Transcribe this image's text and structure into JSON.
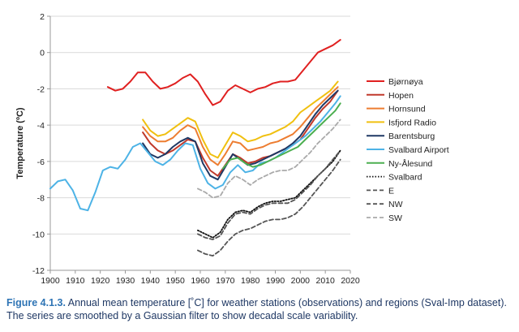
{
  "chart_data": {
    "type": "line",
    "title": "",
    "xlabel": "",
    "ylabel": "Temperature (ºC)",
    "xlim": [
      1900,
      2020
    ],
    "ylim": [
      -12,
      2
    ],
    "xticks": [
      1900,
      1910,
      1920,
      1930,
      1940,
      1950,
      1960,
      1970,
      1980,
      1990,
      2000,
      2010,
      2020
    ],
    "yticks": [
      -12,
      -10,
      -8,
      -6,
      -4,
      -2,
      0,
      2
    ],
    "grid": true,
    "legend_position": "right",
    "series": [
      {
        "name": "Bjørnøya",
        "color": "#e02020",
        "dash": "solid",
        "x": [
          1923,
          1926,
          1929,
          1932,
          1935,
          1938,
          1941,
          1944,
          1947,
          1950,
          1953,
          1956,
          1959,
          1962,
          1965,
          1968,
          1971,
          1974,
          1977,
          1980,
          1983,
          1986,
          1989,
          1992,
          1995,
          1998,
          2001,
          2004,
          2007,
          2010,
          2013,
          2016
        ],
        "y": [
          -1.9,
          -2.1,
          -2.0,
          -1.6,
          -1.1,
          -1.1,
          -1.6,
          -2.0,
          -1.9,
          -1.7,
          -1.4,
          -1.2,
          -1.6,
          -2.3,
          -2.9,
          -2.7,
          -2.1,
          -1.8,
          -2.0,
          -2.2,
          -2.0,
          -1.9,
          -1.7,
          -1.6,
          -1.6,
          -1.5,
          -1.0,
          -0.5,
          0.0,
          0.2,
          0.4,
          0.7
        ]
      },
      {
        "name": "Hopen",
        "color": "#c0392b",
        "dash": "solid",
        "x": [
          1937,
          1940,
          1943,
          1946,
          1949,
          1952,
          1955,
          1958,
          1961,
          1964,
          1967,
          1970,
          1973,
          1976,
          1979,
          1982,
          1985,
          1988,
          1991,
          1994,
          1997,
          2000,
          2003,
          2006,
          2009,
          2012,
          2015
        ],
        "y": [
          -4.4,
          -5.0,
          -5.4,
          -5.6,
          -5.4,
          -5.1,
          -4.8,
          -4.9,
          -5.8,
          -6.5,
          -6.8,
          -6.2,
          -5.6,
          -5.8,
          -6.1,
          -6.0,
          -5.8,
          -5.7,
          -5.5,
          -5.3,
          -5.1,
          -4.8,
          -4.2,
          -3.6,
          -3.1,
          -2.7,
          -2.1
        ]
      },
      {
        "name": "Hornsund",
        "color": "#ed7d31",
        "dash": "solid",
        "x": [
          1937,
          1940,
          1943,
          1946,
          1949,
          1952,
          1955,
          1958,
          1961,
          1964,
          1967,
          1970,
          1973,
          1976,
          1979,
          1982,
          1985,
          1988,
          1991,
          1994,
          1997,
          2000,
          2003,
          2006,
          2009,
          2012,
          2015
        ],
        "y": [
          -4.1,
          -4.6,
          -4.9,
          -4.9,
          -4.7,
          -4.3,
          -4.0,
          -4.2,
          -5.2,
          -5.9,
          -6.2,
          -5.6,
          -4.9,
          -5.0,
          -5.4,
          -5.3,
          -5.2,
          -5.0,
          -4.9,
          -4.7,
          -4.5,
          -4.1,
          -3.6,
          -3.1,
          -2.7,
          -2.3,
          -1.9
        ]
      },
      {
        "name": "Isfjord Radio",
        "color": "#f0c010",
        "dash": "solid",
        "x": [
          1937,
          1940,
          1943,
          1946,
          1949,
          1952,
          1955,
          1958,
          1961,
          1964,
          1967,
          1970,
          1973,
          1976,
          1979,
          1982,
          1985,
          1988,
          1991,
          1994,
          1997,
          2000,
          2003,
          2006,
          2009,
          2012,
          2015
        ],
        "y": [
          -3.7,
          -4.3,
          -4.6,
          -4.5,
          -4.2,
          -3.9,
          -3.6,
          -3.8,
          -4.8,
          -5.6,
          -5.8,
          -5.1,
          -4.4,
          -4.6,
          -4.9,
          -4.8,
          -4.6,
          -4.5,
          -4.3,
          -4.1,
          -3.8,
          -3.3,
          -3.0,
          -2.7,
          -2.4,
          -2.1,
          -1.6
        ]
      },
      {
        "name": "Barentsburg",
        "color": "#1f3864",
        "dash": "solid",
        "x": [
          1937,
          1940,
          1943,
          1946,
          1949,
          1952,
          1955,
          1958,
          1961,
          1964,
          1967,
          1970,
          1973,
          1976,
          1979,
          1982,
          1985,
          1988,
          1991,
          1994,
          1997,
          2000,
          2003,
          2006,
          2009,
          2012,
          2015
        ],
        "y": [
          -5.0,
          -5.6,
          -5.8,
          -5.6,
          -5.2,
          -4.9,
          -4.7,
          -4.9,
          -6.1,
          -6.8,
          -7.0,
          -6.3,
          -5.6,
          -5.9,
          -6.2,
          -6.1,
          -5.9,
          -5.7,
          -5.5,
          -5.3,
          -5.0,
          -4.6,
          -4.0,
          -3.4,
          -2.9,
          -2.5,
          -2.1
        ]
      },
      {
        "name": "Svalbard Airport",
        "color": "#4db3e6",
        "dash": "solid",
        "x": [
          1900,
          1903,
          1906,
          1909,
          1912,
          1915,
          1918,
          1921,
          1924,
          1927,
          1930,
          1933,
          1936,
          1939,
          1942,
          1945,
          1948,
          1951,
          1954,
          1957,
          1960,
          1963,
          1966,
          1969,
          1972,
          1975,
          1978,
          1981,
          1984,
          1987,
          1990,
          1993,
          1996,
          1999,
          2002,
          2005,
          2008,
          2011,
          2014,
          2016
        ],
        "y": [
          -7.5,
          -7.1,
          -7.0,
          -7.6,
          -8.6,
          -8.7,
          -7.7,
          -6.5,
          -6.3,
          -6.4,
          -5.9,
          -5.2,
          -5.0,
          -5.5,
          -6.0,
          -6.2,
          -5.9,
          -5.4,
          -5.0,
          -5.1,
          -6.4,
          -7.2,
          -7.5,
          -7.3,
          -6.6,
          -6.2,
          -6.6,
          -6.5,
          -6.1,
          -6.0,
          -5.8,
          -5.5,
          -5.2,
          -4.9,
          -4.6,
          -4.2,
          -3.8,
          -3.3,
          -2.8,
          -2.4
        ]
      },
      {
        "name": "Ny-Ålesund",
        "color": "#4caf50",
        "dash": "solid",
        "x": [
          1969,
          1972,
          1975,
          1978,
          1981,
          1984,
          1987,
          1990,
          1993,
          1996,
          1999,
          2002,
          2005,
          2008,
          2011,
          2014,
          2016
        ],
        "y": [
          -6.4,
          -5.9,
          -5.8,
          -6.1,
          -6.3,
          -6.2,
          -6.0,
          -5.8,
          -5.6,
          -5.4,
          -5.2,
          -4.8,
          -4.4,
          -4.0,
          -3.6,
          -3.2,
          -2.8
        ]
      },
      {
        "name": "Svalbard",
        "color": "#111111",
        "dash": "dotted",
        "x": [
          1959,
          1962,
          1965,
          1968,
          1971,
          1974,
          1977,
          1980,
          1983,
          1986,
          1989,
          1992,
          1995,
          1998,
          2001,
          2004,
          2007,
          2010,
          2013,
          2016
        ],
        "y": [
          -9.8,
          -10.0,
          -10.2,
          -9.9,
          -9.2,
          -8.8,
          -8.7,
          -8.8,
          -8.5,
          -8.3,
          -8.2,
          -8.2,
          -8.1,
          -8.0,
          -7.6,
          -7.2,
          -6.8,
          -6.4,
          -6.0,
          -5.4
        ]
      },
      {
        "name": "E",
        "color": "#555555",
        "dash": "dashed",
        "x": [
          1959,
          1962,
          1965,
          1968,
          1971,
          1974,
          1977,
          1980,
          1983,
          1986,
          1989,
          1992,
          1995,
          1998,
          2001,
          2004,
          2007,
          2010,
          2013,
          2016
        ],
        "y": [
          -10.9,
          -11.1,
          -11.2,
          -10.9,
          -10.4,
          -10.0,
          -9.8,
          -9.7,
          -9.5,
          -9.3,
          -9.2,
          -9.2,
          -9.1,
          -8.9,
          -8.5,
          -8.0,
          -7.5,
          -7.0,
          -6.5,
          -5.9
        ]
      },
      {
        "name": "NW",
        "color": "#555555",
        "dash": "dashed",
        "x": [
          1959,
          1962,
          1965,
          1968,
          1971,
          1974,
          1977,
          1980,
          1983,
          1986,
          1989,
          1992,
          1995,
          1998,
          2001,
          2004,
          2007,
          2010,
          2013,
          2016
        ],
        "y": [
          -10.0,
          -10.2,
          -10.3,
          -10.1,
          -9.4,
          -8.9,
          -8.8,
          -8.9,
          -8.6,
          -8.4,
          -8.3,
          -8.3,
          -8.3,
          -8.1,
          -7.7,
          -7.3,
          -6.8,
          -6.4,
          -5.9,
          -5.4
        ]
      },
      {
        "name": "SW",
        "color": "#aaaaaa",
        "dash": "dashed",
        "x": [
          1959,
          1962,
          1965,
          1968,
          1971,
          1974,
          1977,
          1980,
          1983,
          1986,
          1989,
          1992,
          1995,
          1998,
          2001,
          2004,
          2007,
          2010,
          2013,
          2016
        ],
        "y": [
          -7.5,
          -7.7,
          -8.0,
          -7.9,
          -7.2,
          -6.8,
          -7.0,
          -7.3,
          -7.0,
          -6.8,
          -6.6,
          -6.5,
          -6.5,
          -6.3,
          -5.9,
          -5.5,
          -5.0,
          -4.6,
          -4.2,
          -3.7
        ]
      }
    ]
  },
  "caption": {
    "label": "Figure 4.1.3.",
    "text": " Annual mean temperature [˚C] for weather stations (observations) and regions (Sval-Imp dataset). The series are smoothed by a Gaussian filter to show decadal scale variability."
  }
}
